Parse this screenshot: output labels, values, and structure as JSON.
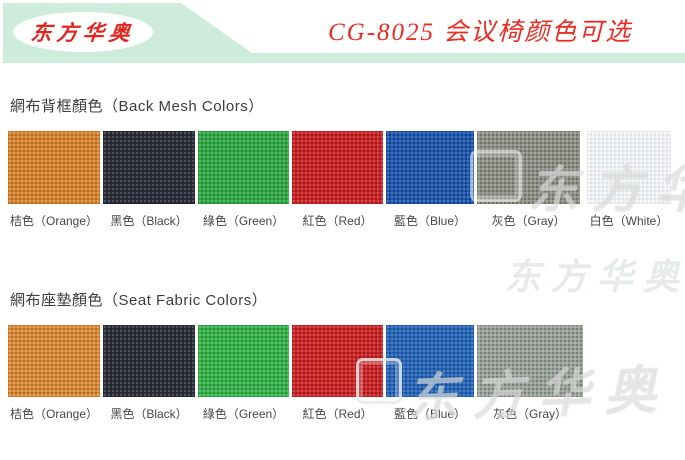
{
  "header": {
    "logo_text": "东方华奥",
    "title": "CG-8025 会议椅颜色可选",
    "band_color": "#cdecdc",
    "title_color": "#ee2b22",
    "logo_color": "#e4251f"
  },
  "watermark": {
    "text": "东方华奥"
  },
  "sections": [
    {
      "title": "網布背框顏色（Back Mesh Colors）",
      "swatches": [
        {
          "name": "orange",
          "label": "桔色（Orange）",
          "color": "#da8530"
        },
        {
          "name": "black",
          "label": "黑色（Black）",
          "color": "#2b2d38"
        },
        {
          "name": "green",
          "label": "綠色（Green）",
          "color": "#31aa45"
        },
        {
          "name": "red",
          "label": "紅色（Red）",
          "color": "#cb2426"
        },
        {
          "name": "blue",
          "label": "藍色（Blue）",
          "color": "#1e57ae"
        },
        {
          "name": "gray",
          "label": "灰色（Gray）",
          "color": "#8e9287"
        },
        {
          "name": "white",
          "label": "白色（White）",
          "color": "#eef1f3"
        }
      ]
    },
    {
      "title": "網布座墊顏色（Seat Fabric Colors）",
      "swatches": [
        {
          "name": "orange",
          "label": "桔色（Orange）",
          "color": "#dc8a36"
        },
        {
          "name": "black",
          "label": "黑色（Black）",
          "color": "#2c2e39"
        },
        {
          "name": "green",
          "label": "綠色（Green）",
          "color": "#36b34b"
        },
        {
          "name": "red",
          "label": "紅色（Red）",
          "color": "#cc2527"
        },
        {
          "name": "blue",
          "label": "藍色（Blue）",
          "color": "#2767ba"
        },
        {
          "name": "gray",
          "label": "灰色（Gray）",
          "color": "#9ba39b"
        }
      ]
    }
  ]
}
